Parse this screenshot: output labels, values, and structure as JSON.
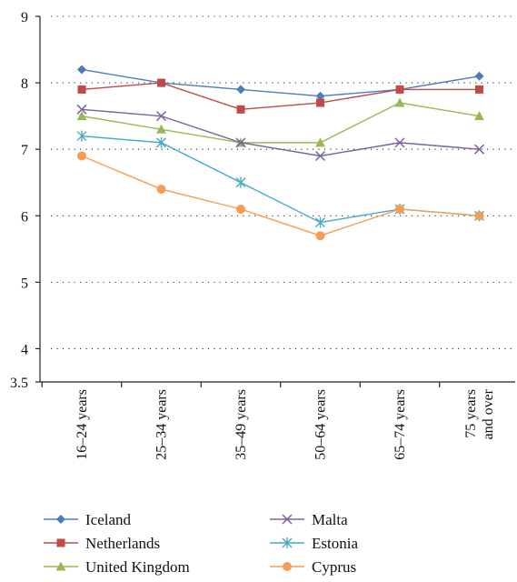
{
  "chart_data": {
    "type": "line",
    "title": "",
    "xlabel": "",
    "ylabel": "",
    "categories": [
      "16–24 years",
      "25–34 years",
      "35–49 years",
      "50–64 years",
      "65–74 years",
      [
        "75 years",
        "and over"
      ]
    ],
    "ylim": [
      3.5,
      9
    ],
    "y_ticks": [
      "3.5",
      "4",
      "5",
      "6",
      "7",
      "8",
      "9"
    ],
    "grid": "horizontal dotted",
    "legend_position": "bottom",
    "series": [
      {
        "name": "Iceland",
        "values": [
          8.2,
          8.0,
          7.9,
          7.8,
          7.9,
          8.1
        ],
        "color": "#4a7ebb",
        "marker": "diamond"
      },
      {
        "name": "Netherlands",
        "values": [
          7.9,
          8.0,
          7.6,
          7.7,
          7.9,
          7.9
        ],
        "color": "#be4b48",
        "marker": "square"
      },
      {
        "name": "United Kingdom",
        "values": [
          7.5,
          7.3,
          7.1,
          7.1,
          7.7,
          7.5
        ],
        "color": "#98b954",
        "marker": "triangle"
      },
      {
        "name": "Malta",
        "values": [
          7.6,
          7.5,
          7.1,
          6.9,
          7.1,
          7.0
        ],
        "color": "#7d60a0",
        "marker": "x"
      },
      {
        "name": "Estonia",
        "values": [
          7.2,
          7.1,
          6.5,
          5.9,
          6.1,
          6.0
        ],
        "color": "#46aac5",
        "marker": "star"
      },
      {
        "name": "Cyprus",
        "values": [
          6.9,
          6.4,
          6.1,
          5.7,
          6.1,
          6.0
        ],
        "color": "#f59d56",
        "marker": "circle"
      }
    ]
  }
}
